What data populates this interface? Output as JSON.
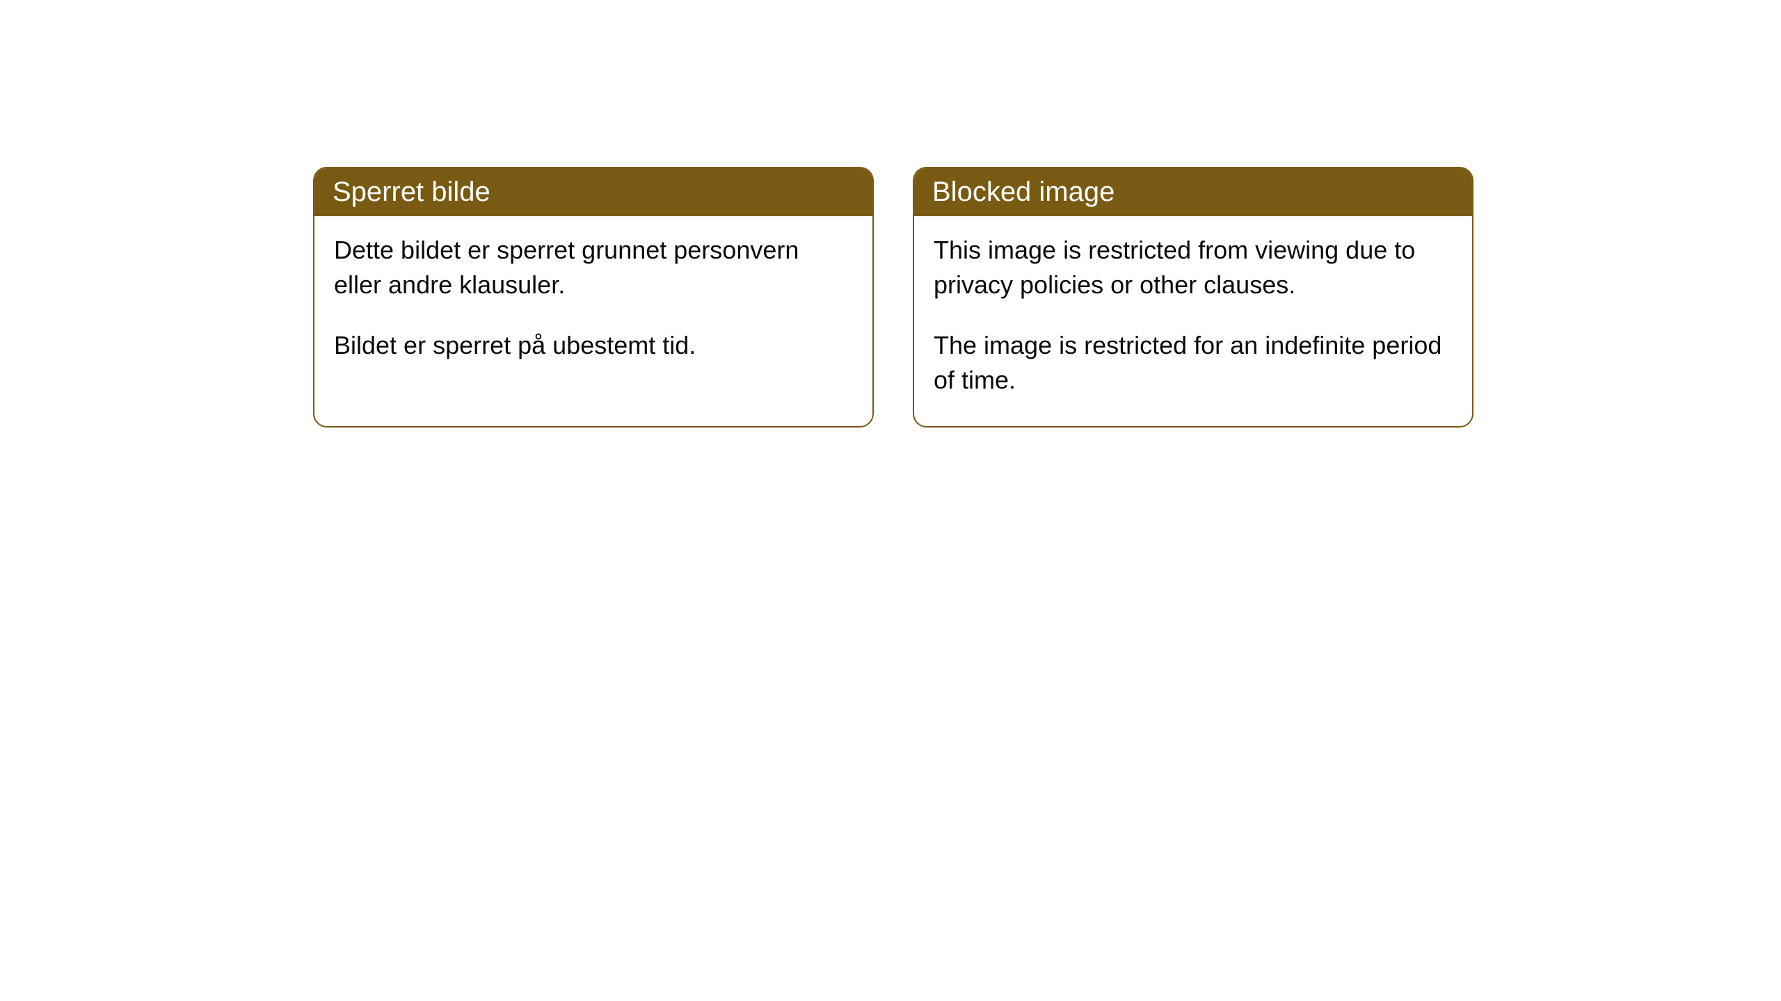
{
  "cards": [
    {
      "title": "Sperret bilde",
      "paragraph1": "Dette bildet er sperret grunnet personvern eller andre klausuler.",
      "paragraph2": "Bildet er sperret på ubestemt tid."
    },
    {
      "title": "Blocked image",
      "paragraph1": "This image is restricted from viewing due to privacy policies or other clauses.",
      "paragraph2": "The image is restricted for an indefinite period of time."
    }
  ],
  "styling": {
    "header_background": "#785a12",
    "header_text_color": "#ffffff",
    "body_text_color": "#0a0a0a",
    "card_border_color": "#785a12",
    "card_background": "#ffffff",
    "page_background": "#ffffff",
    "border_radius": 20,
    "header_fontsize": 40,
    "body_fontsize": 36
  }
}
